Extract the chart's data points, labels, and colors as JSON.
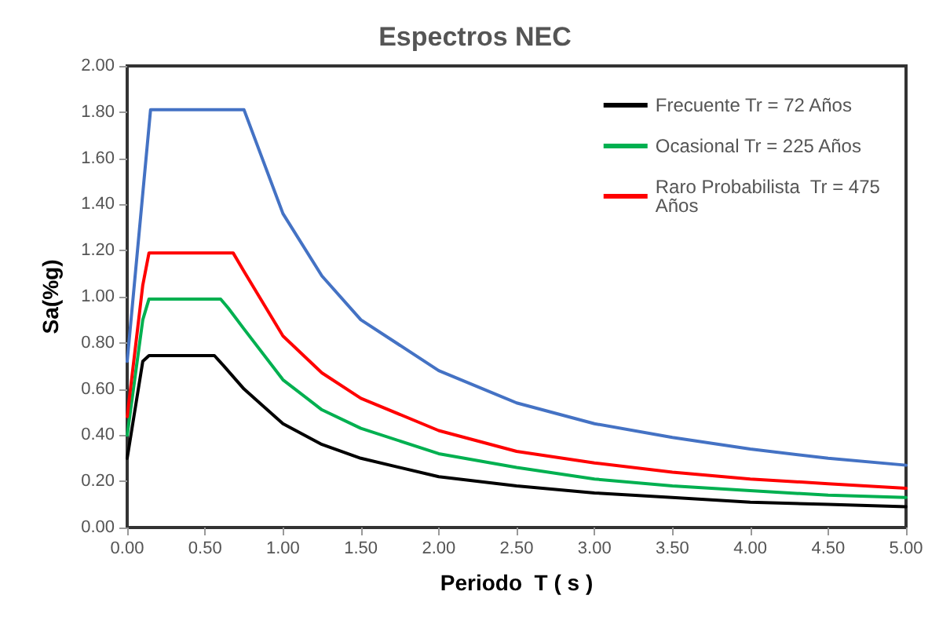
{
  "chart_data": {
    "type": "line",
    "title": "Espectros NEC",
    "xlabel": "Periodo  T ( s )",
    "ylabel": "Sa(%g)",
    "xlim": [
      0,
      5
    ],
    "xticks": [
      {
        "value": 0,
        "label": "0.00"
      },
      {
        "value": 0.5,
        "label": "0.50"
      },
      {
        "value": 1,
        "label": "1.00"
      },
      {
        "value": 1.5,
        "label": "1.50"
      },
      {
        "value": 2,
        "label": "2.00"
      },
      {
        "value": 2.5,
        "label": "2.50"
      },
      {
        "value": 3,
        "label": "3.00"
      },
      {
        "value": 3.5,
        "label": "3.50"
      },
      {
        "value": 4,
        "label": "4.00"
      },
      {
        "value": 4.5,
        "label": "4.50"
      },
      {
        "value": 5,
        "label": "5.00"
      }
    ],
    "ylim": [
      0,
      2
    ],
    "yticks": [
      {
        "value": 0,
        "label": "0.00"
      },
      {
        "value": 0.2,
        "label": "0.20"
      },
      {
        "value": 0.4,
        "label": "0.40"
      },
      {
        "value": 0.6,
        "label": "0.60"
      },
      {
        "value": 0.8,
        "label": "0.80"
      },
      {
        "value": 1,
        "label": "1.00"
      },
      {
        "value": 1.2,
        "label": "1.20"
      },
      {
        "value": 1.4,
        "label": "1.40"
      },
      {
        "value": 1.6,
        "label": "1.60"
      },
      {
        "value": 1.8,
        "label": "1.80"
      },
      {
        "value": 2,
        "label": "2.00"
      }
    ],
    "grid": false,
    "legend": "top right",
    "marker": "none",
    "line_style": "solid",
    "series": [
      {
        "name": "Frecuente Tr = 72 Años",
        "color": "#000000",
        "x": [
          0,
          0.1,
          0.14,
          0.56,
          0.62,
          0.75,
          1,
          1.25,
          1.5,
          2,
          2.5,
          3,
          3.5,
          4,
          4.5,
          5
        ],
        "values": [
          0.3,
          0.72,
          0.745,
          0.745,
          0.7,
          0.6,
          0.45,
          0.36,
          0.3,
          0.22,
          0.18,
          0.15,
          0.13,
          0.11,
          0.1,
          0.09
        ]
      },
      {
        "name": "Ocasional Tr = 225 Años",
        "color": "#00b050",
        "x": [
          0,
          0.1,
          0.14,
          0.6,
          0.65,
          0.75,
          1,
          1.25,
          1.5,
          2,
          2.5,
          3,
          3.5,
          4,
          4.5,
          5
        ],
        "values": [
          0.4,
          0.9,
          0.99,
          0.99,
          0.95,
          0.86,
          0.64,
          0.51,
          0.43,
          0.32,
          0.26,
          0.21,
          0.18,
          0.16,
          0.14,
          0.13
        ]
      },
      {
        "name": "Raro Probabilista  Tr = 475 Años",
        "color": "#ff0000",
        "x": [
          0,
          0.1,
          0.14,
          0.68,
          0.75,
          1,
          1.25,
          1.5,
          2,
          2.5,
          3,
          3.5,
          4,
          4.5,
          5
        ],
        "values": [
          0.48,
          1.05,
          1.19,
          1.19,
          1.11,
          0.83,
          0.67,
          0.56,
          0.42,
          0.33,
          0.28,
          0.24,
          0.21,
          0.19,
          0.17
        ]
      },
      {
        "color": "#4472c4",
        "x": [
          0,
          0.15,
          0.75,
          1,
          1.25,
          1.5,
          2,
          2.5,
          3,
          3.5,
          4,
          4.5,
          5
        ],
        "values": [
          0.72,
          1.81,
          1.81,
          1.36,
          1.09,
          0.9,
          0.68,
          0.54,
          0.45,
          0.39,
          0.34,
          0.3,
          0.27
        ]
      }
    ]
  }
}
